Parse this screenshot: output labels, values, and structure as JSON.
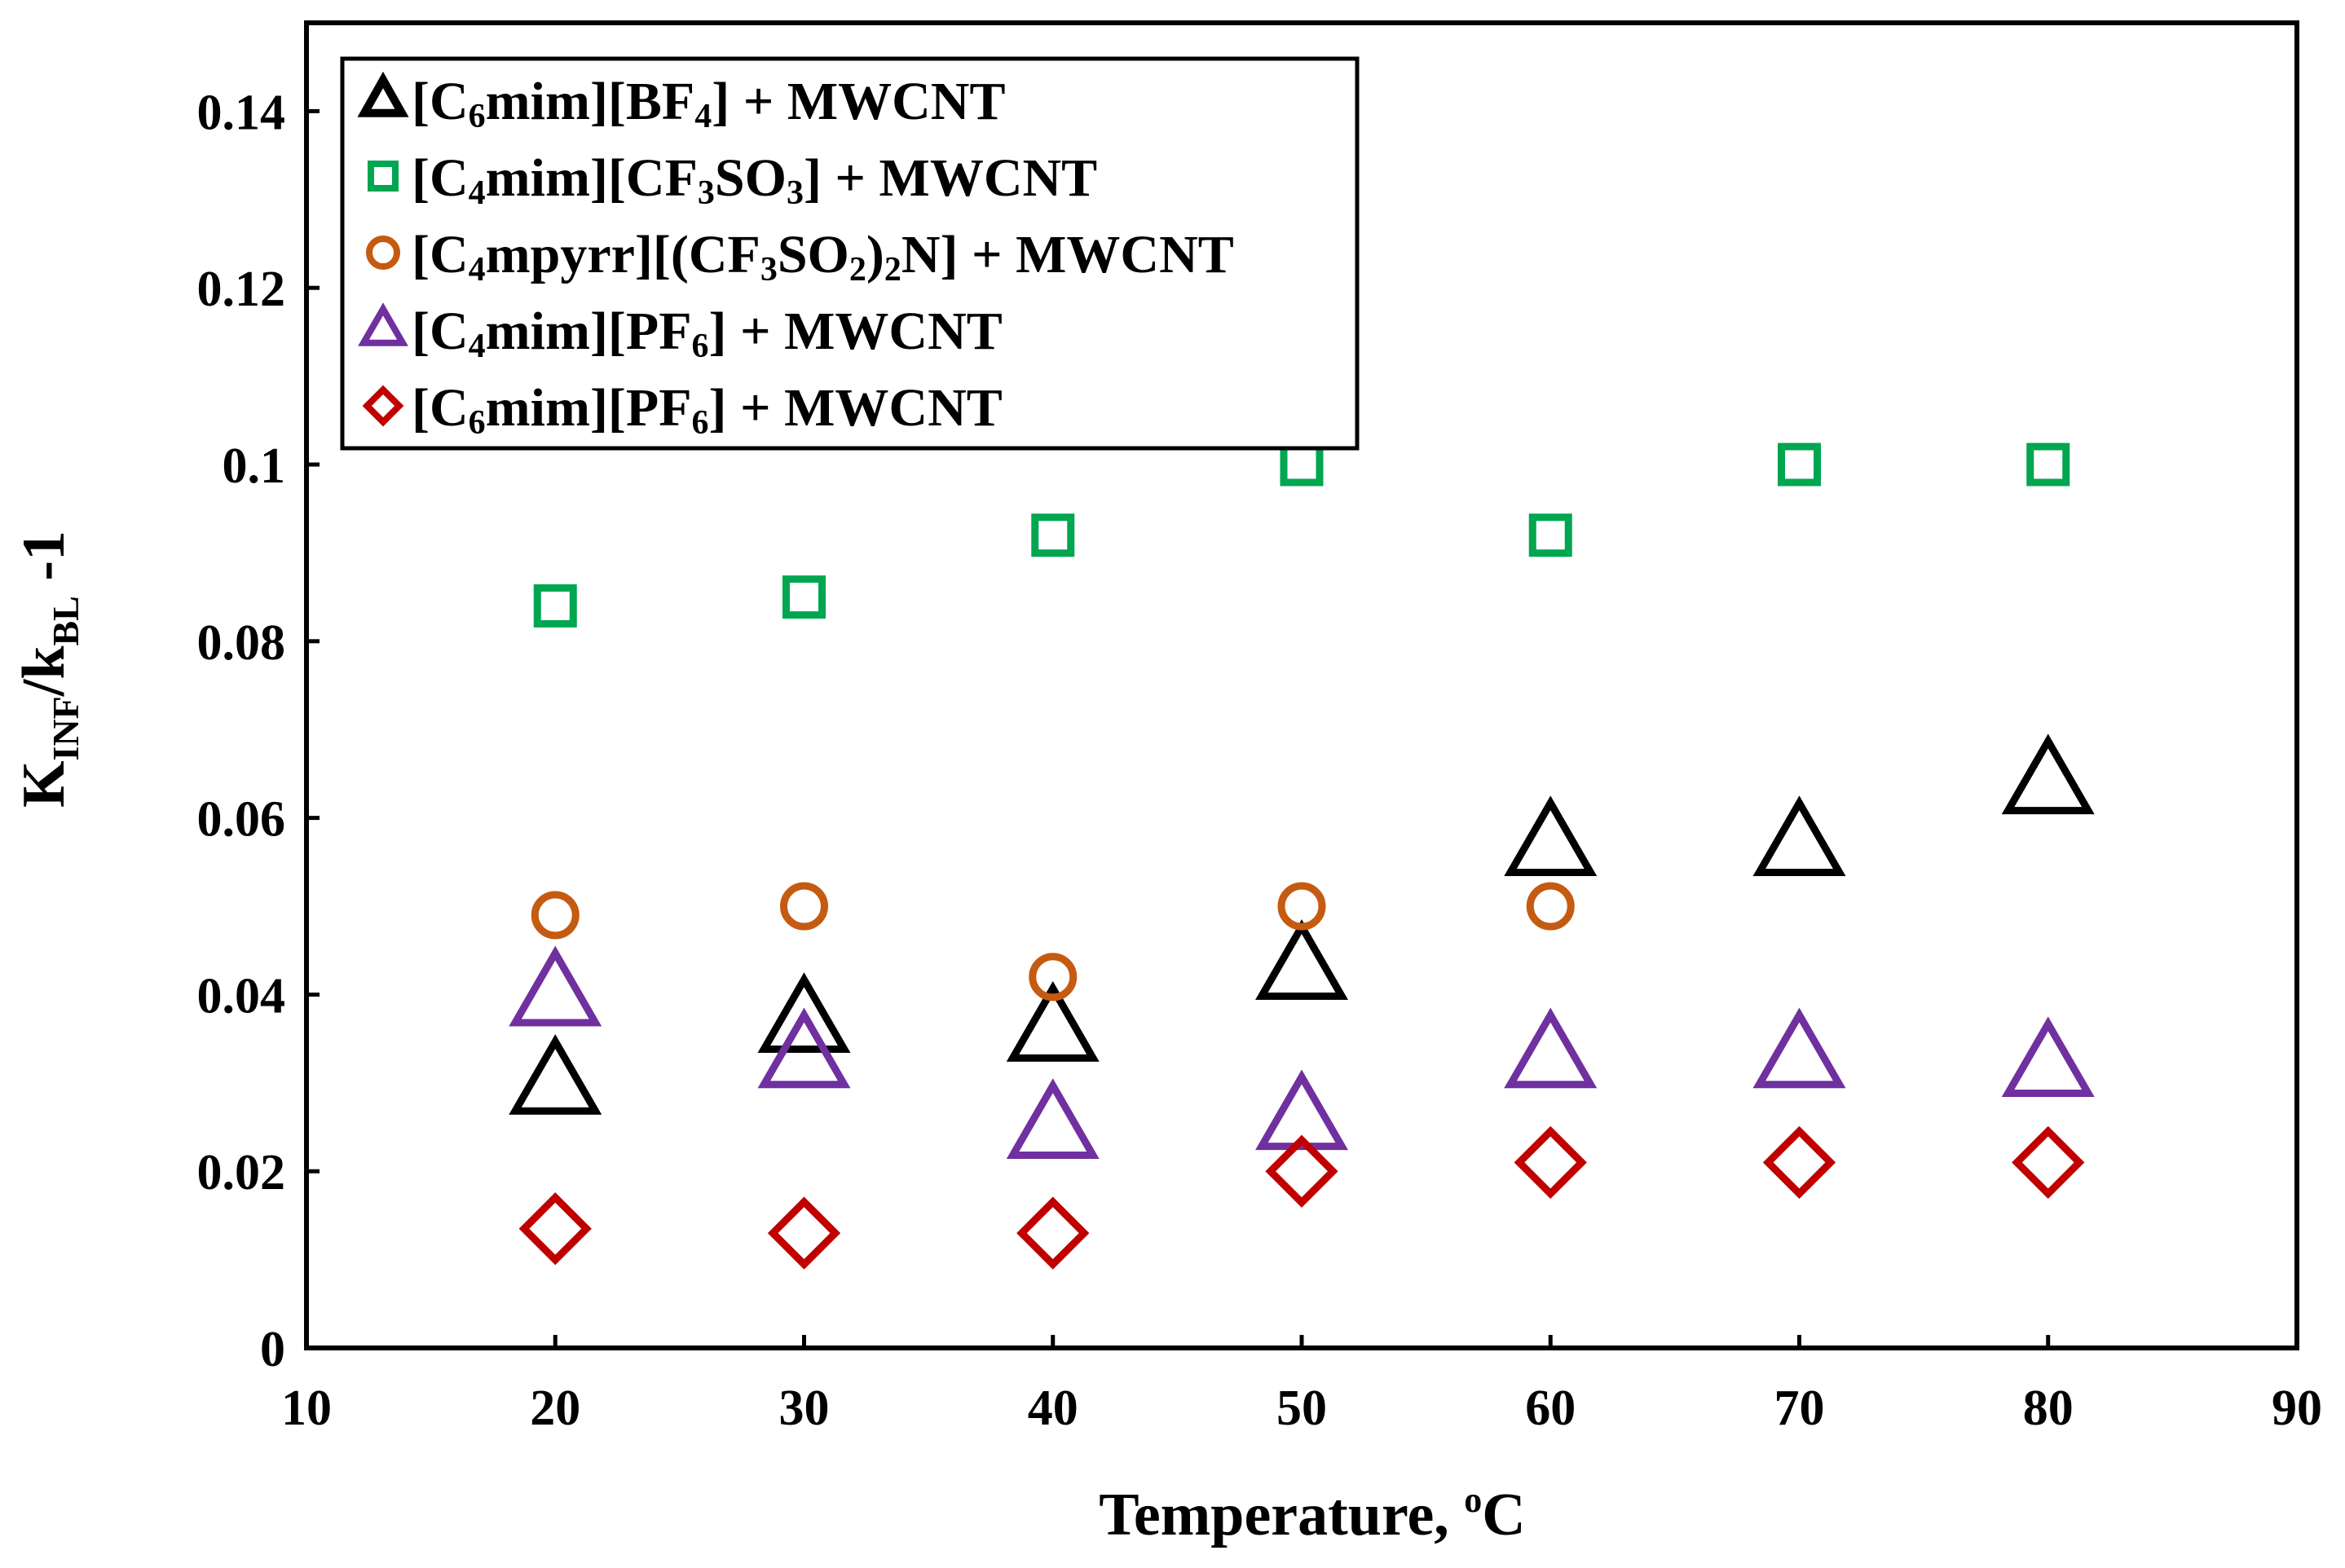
{
  "chart_data": {
    "type": "scatter",
    "title": "",
    "xlabel": "Temperature, °C",
    "xlabel_parts": {
      "main": "Temperature, ",
      "sup": "o",
      "unit": "C"
    },
    "ylabel": "K_INF/k_BL -1",
    "ylabel_parts": {
      "k1": "K",
      "sub1": "INF",
      "slash": "/k",
      "sub2": "BL",
      "tail": " -1"
    },
    "xlim": [
      10,
      90
    ],
    "ylim": [
      0,
      0.15
    ],
    "xticks": [
      10,
      20,
      30,
      40,
      50,
      60,
      70,
      80,
      90
    ],
    "xtick_labels": [
      "10",
      "20",
      "30",
      "40",
      "50",
      "60",
      "70",
      "80",
      "90"
    ],
    "yticks": [
      0,
      0.02,
      0.04,
      0.06,
      0.08,
      0.1,
      0.12,
      0.14
    ],
    "ytick_labels": [
      "0",
      "0.02",
      "0.04",
      "0.06",
      "0.08",
      "0.1",
      "0.12",
      "0.14"
    ],
    "grid": false,
    "legend_position": "top-left",
    "series": [
      {
        "name": "[C6mim][BF4] + MWCNT",
        "label_parts": [
          {
            "t": "[C"
          },
          {
            "t": "6",
            "sub": true
          },
          {
            "t": "mim][BF"
          },
          {
            "t": "4",
            "sub": true
          },
          {
            "t": "] + MWCNT"
          }
        ],
        "marker": "triangle",
        "legend_marker_filled": true,
        "color": "#000000",
        "x": [
          20,
          30,
          40,
          50,
          60,
          70,
          80
        ],
        "y": [
          0.03,
          0.037,
          0.036,
          0.043,
          0.057,
          0.057,
          0.064
        ]
      },
      {
        "name": "[C4mim][CF3SO3] + MWCNT",
        "label_parts": [
          {
            "t": "[C"
          },
          {
            "t": "4",
            "sub": true
          },
          {
            "t": "mim][CF"
          },
          {
            "t": "3",
            "sub": true
          },
          {
            "t": "SO"
          },
          {
            "t": "3",
            "sub": true
          },
          {
            "t": "] + MWCNT"
          }
        ],
        "marker": "square",
        "color": "#00A650",
        "x": [
          20,
          30,
          40,
          50,
          60,
          70,
          80
        ],
        "y": [
          0.084,
          0.085,
          0.092,
          0.1,
          0.092,
          0.1,
          0.1
        ]
      },
      {
        "name": "[C4mpyrr][(CF3SO2)2N] + MWCNT",
        "label_parts": [
          {
            "t": "[C"
          },
          {
            "t": "4",
            "sub": true
          },
          {
            "t": "mpyrr][(CF"
          },
          {
            "t": "3",
            "sub": true
          },
          {
            "t": "SO"
          },
          {
            "t": "2",
            "sub": true
          },
          {
            "t": ")"
          },
          {
            "t": "2",
            "sub": true
          },
          {
            "t": "N] + MWCNT"
          }
        ],
        "marker": "circle",
        "color": "#C55A11",
        "x": [
          20,
          30,
          40,
          50,
          60
        ],
        "y": [
          0.049,
          0.05,
          0.042,
          0.05,
          0.05
        ]
      },
      {
        "name": "[C4mim][PF6] + MWCNT",
        "label_parts": [
          {
            "t": "[C"
          },
          {
            "t": "4",
            "sub": true
          },
          {
            "t": "mim][PF"
          },
          {
            "t": "6",
            "sub": true
          },
          {
            "t": "] + MWCNT"
          }
        ],
        "marker": "triangle",
        "color": "#7030A0",
        "x": [
          20,
          30,
          40,
          50,
          60,
          70,
          80
        ],
        "y": [
          0.04,
          0.033,
          0.025,
          0.026,
          0.033,
          0.033,
          0.032
        ]
      },
      {
        "name": "[C6mim][PF6] + MWCNT",
        "label_parts": [
          {
            "t": "[C"
          },
          {
            "t": "6",
            "sub": true
          },
          {
            "t": "mim][PF"
          },
          {
            "t": "6",
            "sub": true
          },
          {
            "t": "] + MWCNT"
          }
        ],
        "marker": "diamond",
        "color": "#C00000",
        "x": [
          20,
          30,
          40,
          50,
          60,
          70,
          80
        ],
        "y": [
          0.0135,
          0.013,
          0.013,
          0.02,
          0.021,
          0.021,
          0.021
        ]
      }
    ]
  }
}
